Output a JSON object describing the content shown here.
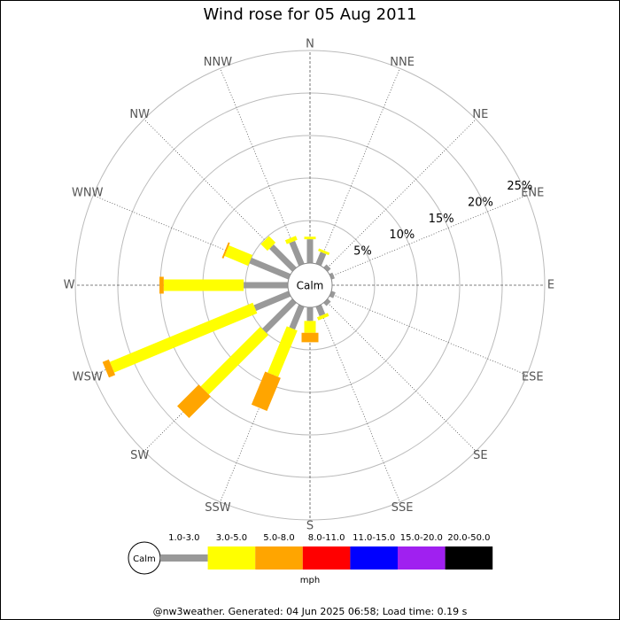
{
  "chart_data": {
    "type": "windrose",
    "title": "Wind rose for 05 Aug 2011",
    "categories": [
      "N",
      "NNE",
      "NE",
      "ENE",
      "E",
      "ESE",
      "SE",
      "SSE",
      "S",
      "SSW",
      "SW",
      "WSW",
      "W",
      "WNW",
      "NW",
      "NNW"
    ],
    "calm_label": "Calm",
    "unit": "mph",
    "rlim": [
      0,
      25
    ],
    "rticks": [
      {
        "value": 5,
        "label": "5%"
      },
      {
        "value": 10,
        "label": "10%"
      },
      {
        "value": 15,
        "label": "15%"
      },
      {
        "value": 20,
        "label": "20%"
      },
      {
        "value": 25,
        "label": "25%"
      }
    ],
    "grid": true,
    "series": [
      {
        "name": "1.0-3.0",
        "color": "#999999",
        "values": [
          2.8,
          1.5,
          0.5,
          0.4,
          0,
          0.5,
          0.5,
          1.2,
          1.6,
          2.9,
          5.0,
          4.4,
          5.2,
          5.0,
          3.8,
          2.9
        ]
      },
      {
        "name": "3.0-5.0",
        "color": "#ffff00",
        "values": [
          0.3,
          0.3,
          0,
          0,
          0,
          0,
          0,
          0.4,
          1.4,
          5.9,
          9.9,
          18.2,
          9.4,
          3.0,
          1.1,
          0.5
        ]
      },
      {
        "name": "5.0-8.0",
        "color": "#ffa500",
        "values": [
          0,
          0,
          0,
          0,
          0,
          0,
          0,
          0,
          1.1,
          4.2,
          3.6,
          0.8,
          0.5,
          0.2,
          0,
          0
        ]
      },
      {
        "name": "8.0-11.0",
        "color": "#ff0000",
        "values": [
          0,
          0,
          0,
          0,
          0,
          0,
          0,
          0,
          0,
          0,
          0,
          0,
          0,
          0,
          0,
          0
        ]
      },
      {
        "name": "11.0-15.0",
        "color": "#0000ff",
        "values": [
          0,
          0,
          0,
          0,
          0,
          0,
          0,
          0,
          0,
          0,
          0,
          0,
          0,
          0,
          0,
          0
        ]
      },
      {
        "name": "15.0-20.0",
        "color": "#a020f0",
        "values": [
          0,
          0,
          0,
          0,
          0,
          0,
          0,
          0,
          0,
          0,
          0,
          0,
          0,
          0,
          0,
          0
        ]
      },
      {
        "name": "20.0-50.0",
        "color": "#000000",
        "values": [
          0,
          0,
          0,
          0,
          0,
          0,
          0,
          0,
          0,
          0,
          0,
          0,
          0,
          0,
          0,
          0
        ]
      }
    ],
    "footer": "@nw3weather. Generated: 04 Jun 2025 06:58; Load time: 0.19 s"
  }
}
